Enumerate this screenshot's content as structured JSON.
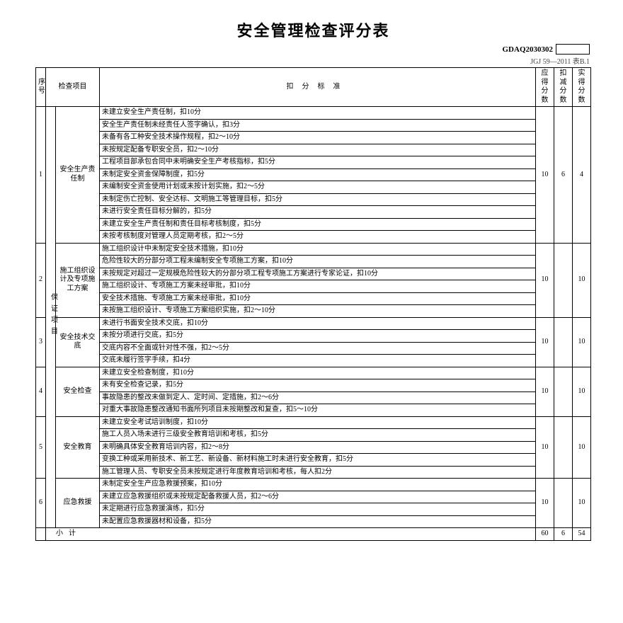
{
  "title": "安全管理检查评分表",
  "doc_code_label": "GDAQ2030302",
  "reference": "JGJ 59—2011 表B.1",
  "headers": {
    "seq": "序号",
    "item": "检查项目",
    "criteria": "扣分标准",
    "should": "应得分数",
    "deduct": "扣减分数",
    "actual": "实得分数"
  },
  "category_label": "保证项目",
  "sections": [
    {
      "seq": "1",
      "item": "安全生产责任制",
      "should": "10",
      "deduct": "6",
      "actual": "4",
      "criteria": [
        "未建立安全生产责任制，扣10分",
        "安全生产责任制未经责任人签字确认，扣3分",
        "未备有各工种安全技术操作规程，扣2～10分",
        "未按规定配备专职安全员，扣2～10分",
        "工程项目部承包合同中未明确安全生产考核指标，扣5分",
        "未制定安全资金保障制度，扣5分",
        "未编制安全资金使用计划或未按计划实施，扣2～5分",
        "未制定伤亡控制、安全达标、文明施工等管理目标，扣5分",
        "未进行安全责任目标分解的，扣5分",
        "未建立安全生产责任制和责任目标考核制度，扣5分",
        "未按考核制度对管理人员定期考核，扣2～5分"
      ]
    },
    {
      "seq": "2",
      "item": "施工组织设计及专项施工方案",
      "should": "10",
      "deduct": "",
      "actual": "10",
      "criteria": [
        "施工组织设计中未制定安全技术措施，扣10分",
        "危险性较大的分部分项工程未编制安全专项施工方案，扣10分",
        "未按规定对超过一定规模危险性较大的分部分项工程专项施工方案进行专家论证，扣10分",
        "施工组织设计、专项施工方案未经审批，扣10分",
        "安全技术措施、专项施工方案未经审批，扣10分",
        "未按施工组织设计、专项施工方案组织实施，扣2～10分"
      ]
    },
    {
      "seq": "3",
      "item": "安全技术交底",
      "should": "10",
      "deduct": "",
      "actual": "10",
      "criteria": [
        "未进行书面安全技术交底，扣10分",
        "未按分项进行交底，扣5分",
        "交底内容不全面或针对性不强，扣2～5分",
        "交底未履行签字手续，扣4分"
      ]
    },
    {
      "seq": "4",
      "item": "安全检查",
      "should": "10",
      "deduct": "",
      "actual": "10",
      "criteria": [
        "未建立安全检查制度，扣10分",
        "未有安全检查记录，扣5分",
        "事故隐患的整改未做到定人、定时间、定措施，扣2～6分",
        "对重大事故隐患整改通知书面所列项目未按期整改和复查，扣5～10分"
      ]
    },
    {
      "seq": "5",
      "item": "安全教育",
      "should": "10",
      "deduct": "",
      "actual": "10",
      "criteria": [
        "未建立安全考试培训制度，扣10分",
        "施工人员入场未进行三级安全教育培训和考核，扣5分",
        "未明确具体安全教育培训内容，扣2～8分",
        "变换工种或采用新技术、新工艺、新设备、新材料施工时未进行安全教育，扣5分",
        "施工管理人员、专职安全员未按规定进行年度教育培训和考核，每人扣2分"
      ]
    },
    {
      "seq": "6",
      "item": "应急救援",
      "should": "10",
      "deduct": "",
      "actual": "10",
      "criteria": [
        "未制定安全生产应急救援预案，扣10分",
        "未建立应急救援组织或未按规定配备救援人员，扣2～6分",
        "未定期进行应急救援演练，扣5分",
        "未配置应急救援器材和设备，扣5分"
      ]
    }
  ],
  "subtotal": {
    "label": "小计",
    "should": "60",
    "deduct": "6",
    "actual": "54"
  }
}
